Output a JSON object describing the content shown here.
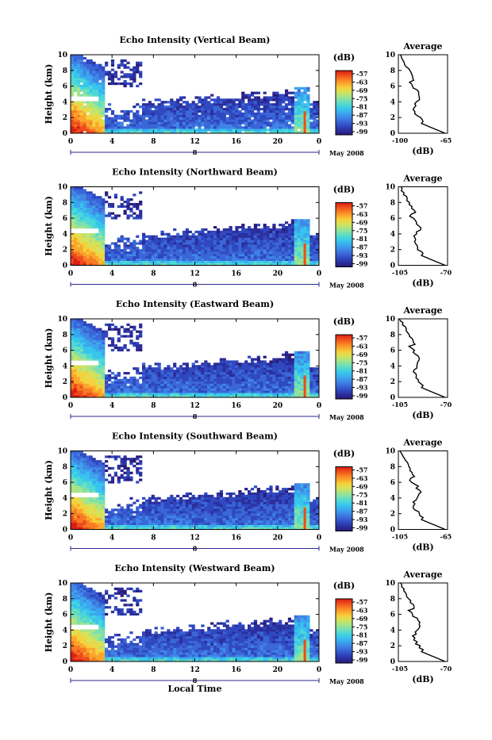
{
  "colors": {
    "scale": [
      "#2a1a78",
      "#2b2e9c",
      "#2f48c0",
      "#3a66d8",
      "#3f86e6",
      "#3aa6ee",
      "#38c4ec",
      "#4cd8d6",
      "#7ae0b0",
      "#a8e486",
      "#d6e25a",
      "#f4d23c",
      "#fba62c",
      "#f77a22",
      "#ee4a1c",
      "#d81c14"
    ],
    "zero_line": "#ffd000"
  },
  "chart_data": [
    {
      "type": "heatmap",
      "title": "Echo Intensity (Vertical Beam)",
      "ylabel": "Height (km)",
      "xticks": [
        "0",
        "4",
        "8",
        "12",
        "16",
        "20",
        "0"
      ],
      "date_mark": "8",
      "date_label": "May 2008",
      "ylim": [
        0,
        10
      ],
      "yticks": [
        "0",
        "2",
        "4",
        "6",
        "8",
        "10"
      ],
      "colorbar": {
        "unit": "(dB)",
        "ticks": [
          "-57",
          "-63",
          "-69",
          "-75",
          "-81",
          "-87",
          "-93",
          "-99"
        ]
      },
      "profile": {
        "title": "Average",
        "xlabel": "(dB)",
        "xticks": [
          "-100",
          "-65"
        ],
        "xlim": [
          -100,
          -65
        ],
        "yticks": [
          "0",
          "2",
          "4",
          "6",
          "8",
          "10"
        ]
      }
    },
    {
      "type": "heatmap",
      "title": "Echo Intensity (Northward Beam)",
      "ylabel": "Height (km)",
      "xticks": [
        "0",
        "4",
        "8",
        "12",
        "16",
        "20",
        "0"
      ],
      "date_mark": "8",
      "date_label": "May 2008",
      "ylim": [
        0,
        10
      ],
      "yticks": [
        "0",
        "2",
        "4",
        "6",
        "8",
        "10"
      ],
      "colorbar": {
        "unit": "(dB)",
        "ticks": [
          "-57",
          "-63",
          "-69",
          "-75",
          "-81",
          "-87",
          "-93",
          "-99"
        ]
      },
      "profile": {
        "title": "Average",
        "xlabel": "(dB)",
        "xticks": [
          "-105",
          "-70"
        ],
        "xlim": [
          -105,
          -70
        ],
        "yticks": [
          "0",
          "2",
          "4",
          "6",
          "8",
          "10"
        ]
      }
    },
    {
      "type": "heatmap",
      "title": "Echo Intensity (Eastward Beam)",
      "ylabel": "Height (km)",
      "xticks": [
        "0",
        "4",
        "8",
        "12",
        "16",
        "20",
        "0"
      ],
      "date_mark": "8",
      "date_label": "May 2008",
      "ylim": [
        0,
        10
      ],
      "yticks": [
        "0",
        "2",
        "4",
        "6",
        "8",
        "10"
      ],
      "colorbar": {
        "unit": "(dB)",
        "ticks": [
          "-57",
          "-63",
          "-69",
          "-75",
          "-81",
          "-87",
          "-93",
          "-99"
        ]
      },
      "profile": {
        "title": "Average",
        "xlabel": "(dB)",
        "xticks": [
          "-105",
          "-70"
        ],
        "xlim": [
          -105,
          -70
        ],
        "yticks": [
          "0",
          "2",
          "4",
          "6",
          "8",
          "10"
        ]
      }
    },
    {
      "type": "heatmap",
      "title": "Echo Intensity (Southward Beam)",
      "ylabel": "Height (km)",
      "xticks": [
        "0",
        "4",
        "8",
        "12",
        "16",
        "20",
        "0"
      ],
      "date_mark": "8",
      "date_label": "May 2008",
      "ylim": [
        0,
        10
      ],
      "yticks": [
        "0",
        "2",
        "4",
        "6",
        "8",
        "10"
      ],
      "colorbar": {
        "unit": "(dB)",
        "ticks": [
          "-57",
          "-63",
          "-69",
          "-75",
          "-81",
          "-87",
          "-93",
          "-99"
        ]
      },
      "profile": {
        "title": "Average",
        "xlabel": "(dB)",
        "xticks": [
          "-105",
          "-65"
        ],
        "xlim": [
          -105,
          -65
        ],
        "yticks": [
          "0",
          "2",
          "4",
          "6",
          "8",
          "10"
        ]
      }
    },
    {
      "type": "heatmap",
      "title": "Echo Intensity (Westward Beam)",
      "ylabel": "Height (km)",
      "xticks": [
        "0",
        "4",
        "8",
        "12",
        "16",
        "20",
        "0"
      ],
      "date_mark": "8",
      "date_label": "May 2008",
      "xlabel": "Local Time",
      "ylim": [
        0,
        10
      ],
      "yticks": [
        "0",
        "2",
        "4",
        "6",
        "8",
        "10"
      ],
      "colorbar": {
        "unit": "(dB)",
        "ticks": [
          "-57",
          "-63",
          "-69",
          "-75",
          "-81",
          "-87",
          "-93",
          "-99"
        ]
      },
      "profile": {
        "title": "Average",
        "xlabel": "(dB)",
        "xticks": [
          "-105",
          "-70"
        ],
        "xlim": [
          -105,
          -70
        ],
        "yticks": [
          "0",
          "2",
          "4",
          "6",
          "8",
          "10"
        ]
      }
    }
  ]
}
